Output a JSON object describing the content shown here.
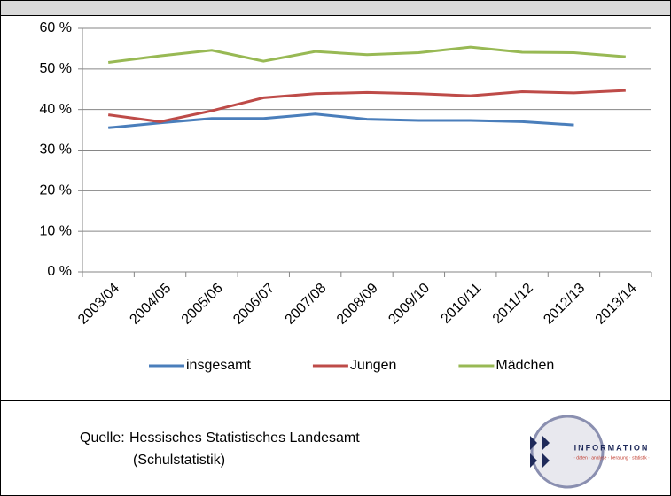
{
  "chart_data": {
    "type": "line",
    "categories": [
      "2003/04",
      "2004/05",
      "2005/06",
      "2006/07",
      "2007/08",
      "2008/09",
      "2009/10",
      "2010/11",
      "2011/12",
      "2012/13",
      "2013/14"
    ],
    "series": [
      {
        "name": "insgesamt",
        "color": "#4a7ebb",
        "values": [
          35.5,
          36.7,
          37.8,
          37.8,
          38.9,
          37.6,
          37.3,
          37.3,
          37.0,
          36.2,
          null
        ]
      },
      {
        "name": "Jungen",
        "color": "#be4b48",
        "values": [
          38.7,
          37.0,
          39.7,
          42.9,
          43.9,
          44.2,
          43.9,
          43.4,
          44.4,
          44.1,
          44.7
        ]
      },
      {
        "name": "Mädchen",
        "color": "#98b954",
        "values": [
          51.6,
          53.2,
          54.6,
          51.9,
          54.3,
          53.5,
          54.0,
          55.4,
          54.1,
          54.0,
          53.0
        ]
      }
    ],
    "ylim": [
      0,
      60
    ],
    "yticks": [
      {
        "value": 0,
        "label": "0 %"
      },
      {
        "value": 10,
        "label": "10 %"
      },
      {
        "value": 20,
        "label": "20 %"
      },
      {
        "value": 30,
        "label": "30 %"
      },
      {
        "value": 40,
        "label": "40 %"
      },
      {
        "value": 50,
        "label": "50 %"
      },
      {
        "value": 60,
        "label": "60 %"
      }
    ],
    "grid": true,
    "legend": "bottom"
  },
  "footer": {
    "source_label": "Quelle:",
    "source_lines": [
      "Hessisches Statistisches Landesamt",
      "(Schulstatistik)"
    ]
  },
  "logo": {
    "text": "INFORMATION",
    "tagline": "· daten · analyse · beratung · statistik ·"
  }
}
